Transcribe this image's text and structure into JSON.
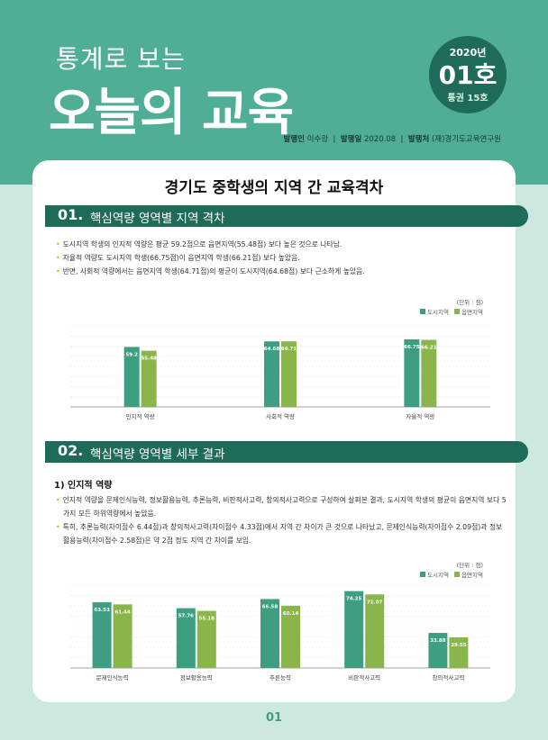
{
  "header": {
    "title_small": "통계로 보는",
    "title_big": "오늘의 교육",
    "badge_year": "2020년",
    "badge_issue": "01호",
    "badge_volume": "통권 15호",
    "publisher_label": "발행인",
    "publisher": "이수광",
    "date_label": "발행일",
    "date": "2020.08",
    "issuer_label": "발행처",
    "issuer": "(재)경기도교육연구원"
  },
  "main_title": "경기도 중학생의 지역 간 교육격차",
  "section1": {
    "num": "01.",
    "title": "핵심역량 영역별 지역 격차",
    "bullets": [
      "도시지역 학생의 인지적 역량은 평균 59.2점으로 읍면지역(55.48점) 보다 높은 것으로 나타남.",
      "자율적 역량도 도시지역 학생(66.75점)이 읍면지역 학생(66.21점) 보다 높았음.",
      "반면, 사회적 역량에서는 읍면지역 학생(64.71점)의 평균이 도시지역(64.68점) 보다 근소하게 높았음."
    ],
    "unit": "(단위 : 점)",
    "legend_urban": "도시지역",
    "legend_rural": "읍면지역"
  },
  "section2": {
    "num": "02.",
    "title": "핵심역량 영역별 세부 결과",
    "subhead": "1) 인지적 역량",
    "bullets": [
      "인지적 역량을 문제인식능력, 정보활용능력, 추론능력, 비판적사고력, 창의적사고력으로 구성하여 살펴본 결과, 도시지역 학생의 평균이 읍면지역 보다 5가지 모든 하위역량에서 높았음.",
      "특히, 추론능력(차이점수 6.44점)과 창의적사고력(차이점수 4.33점)에서 지역 간 차이가 큰 것으로 나타났고, 문제인식능력(차이점수 2.09점)과 정보활용능력(차이점수 2.58점)은 약 2점 정도 지역 간 차이를 보임."
    ],
    "unit": "(단위 : 점)",
    "legend_urban": "도시지역",
    "legend_rural": "읍면지역"
  },
  "page_number": "01",
  "colors": {
    "urban": "#3d9e82",
    "rural": "#8ab54a",
    "dark_green": "#1f6b5a",
    "teal": "#4fae95"
  },
  "chart_data": [
    {
      "type": "bar",
      "categories": [
        "인지적 역량",
        "사회적 역량",
        "자율적 역량"
      ],
      "series": [
        {
          "name": "도시지역",
          "values": [
            59.2,
            64.68,
            66.75
          ]
        },
        {
          "name": "읍면지역",
          "values": [
            55.48,
            64.71,
            66.21
          ]
        }
      ],
      "ylim": [
        0,
        80
      ],
      "grid": true,
      "legend": "top-right"
    },
    {
      "type": "bar",
      "categories": [
        "문제인식능력",
        "정보활용능력",
        "추론능력",
        "비판적사고력",
        "창의적사고력"
      ],
      "series": [
        {
          "name": "도시지역",
          "values": [
            63.53,
            57.76,
            66.58,
            74.25,
            33.88
          ]
        },
        {
          "name": "읍면지역",
          "values": [
            61.44,
            55.18,
            60.14,
            71.07,
            29.55
          ]
        }
      ],
      "ylim": [
        0,
        80
      ],
      "grid": true,
      "legend": "top-right"
    }
  ]
}
